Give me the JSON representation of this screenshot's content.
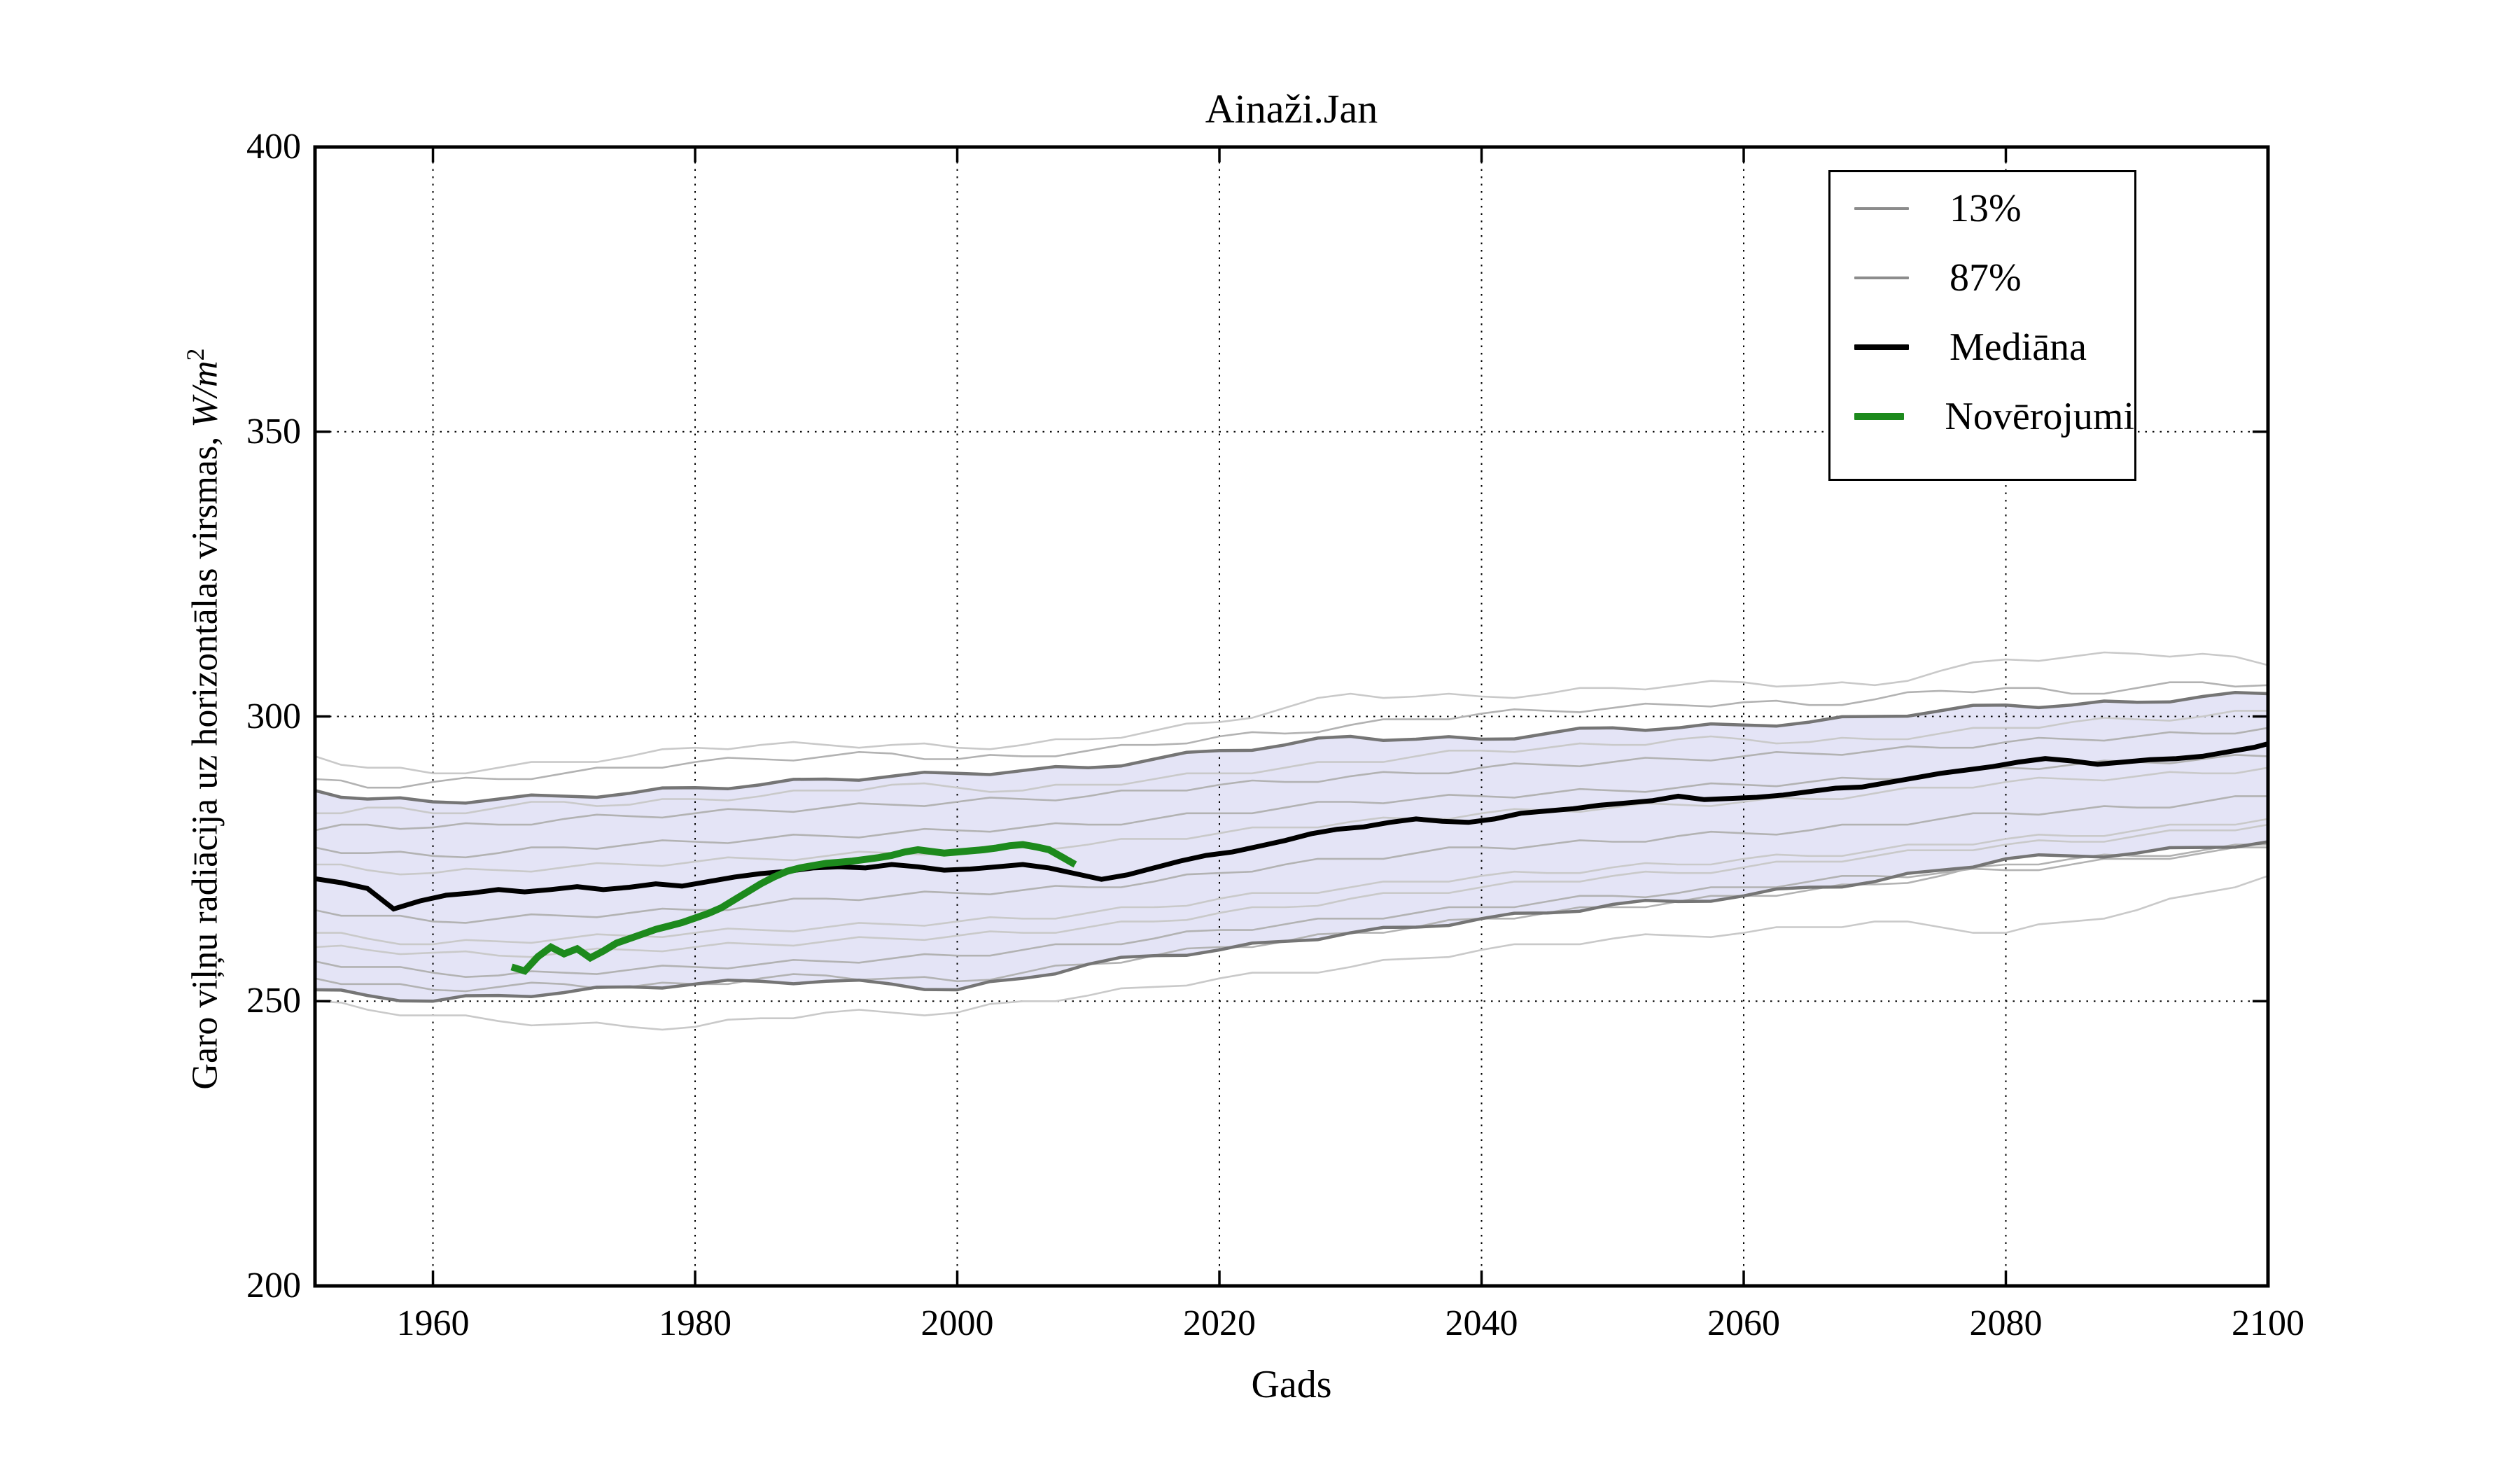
{
  "title": "Ainaži.Jan",
  "xlabel": "Gads",
  "ylabel": {
    "text": "Garo viļņu radiācija uz horizontālas virsmas, ",
    "math": "W/m",
    "sup": "2"
  },
  "legend": {
    "items": [
      {
        "label": "13%",
        "color": "#8c8c8c",
        "thickness": 4
      },
      {
        "label": "87%",
        "color": "#8c8c8c",
        "thickness": 4
      },
      {
        "label": "Mediāna",
        "color": "#000000",
        "thickness": 8
      },
      {
        "label": "Novērojumi",
        "color": "#1d8a1d",
        "thickness": 10
      }
    ]
  },
  "colors": {
    "band_fill": "#e4e4f6",
    "band_edge": "#757575",
    "run_light": "#c9c9c9",
    "run_mid": "#b2b2b2",
    "median": "#000000",
    "observations": "#1d8a1d",
    "grid": "#000000",
    "frame": "#000000"
  },
  "chart_data": {
    "type": "line",
    "title": "Ainaži.Jan",
    "xlabel": "Gads",
    "ylabel": "Garo viļņu radiācija uz horizontālas virsmas, W/m^2",
    "xlim": [
      1951,
      2100
    ],
    "ylim": [
      200,
      400
    ],
    "x_ticks": [
      1960,
      1980,
      2000,
      2020,
      2040,
      2060,
      2080,
      2100
    ],
    "y_ticks": [
      200,
      250,
      300,
      350,
      400
    ],
    "grid": true,
    "legend_position": "upper right",
    "x5": [
      1951,
      1955,
      1960,
      1965,
      1970,
      1975,
      1980,
      1985,
      1990,
      1995,
      2000,
      2005,
      2010,
      2015,
      2020,
      2025,
      2030,
      2035,
      2040,
      2045,
      2050,
      2055,
      2060,
      2065,
      2070,
      2075,
      2080,
      2085,
      2090,
      2095,
      2100
    ],
    "percentile_87": [
      287,
      285.5,
      285,
      285.5,
      286,
      286.5,
      287.5,
      288,
      289,
      289.5,
      290,
      290.5,
      291,
      292.5,
      294,
      295,
      296.5,
      296,
      296,
      297,
      298,
      298,
      298.5,
      299,
      300,
      301,
      302,
      302,
      302.5,
      303.5,
      304
    ],
    "percentile_13": [
      252,
      251,
      250,
      251,
      251.5,
      252.5,
      253,
      253.5,
      253.5,
      253,
      252,
      254,
      256.5,
      258,
      259,
      260.5,
      262,
      263,
      264.5,
      265.5,
      267,
      267.5,
      268.5,
      270,
      271,
      273,
      275,
      275.5,
      276,
      277,
      278
    ],
    "runs": [
      {
        "name": "run-1",
        "shade": "light",
        "y": [
          293,
          291,
          290,
          291,
          292,
          293,
          294.5,
          295,
          295,
          295,
          294.5,
          295,
          296,
          297.5,
          299,
          301.5,
          304,
          303.5,
          303.5,
          304,
          305,
          305.5,
          306,
          305.5,
          305.5,
          308,
          310,
          310.5,
          311,
          311,
          309
        ]
      },
      {
        "name": "run-2",
        "shade": "mid",
        "y": [
          289,
          287.5,
          288.5,
          289,
          290,
          291,
          292,
          292.5,
          293,
          293.5,
          292.5,
          293,
          294,
          295,
          296.5,
          297,
          298.5,
          299.5,
          300.5,
          301,
          301.5,
          302,
          302.5,
          302,
          303,
          304.5,
          305,
          304,
          305,
          306,
          305.5
        ]
      },
      {
        "name": "run-3",
        "shade": "light",
        "y": [
          283,
          284,
          283,
          284,
          285,
          284.5,
          285.5,
          286,
          287,
          288,
          287.5,
          287,
          288,
          289,
          290,
          291,
          292,
          293,
          294,
          294.5,
          295,
          296,
          296,
          295.5,
          296,
          297,
          298,
          299,
          299.5,
          300,
          301
        ]
      },
      {
        "name": "run-4",
        "shade": "mid",
        "y": [
          280,
          281,
          280.5,
          281,
          282,
          282.5,
          283,
          283.5,
          284,
          284.5,
          285,
          285.5,
          286,
          287,
          288,
          288.5,
          289.5,
          290,
          291,
          291.5,
          292,
          292.5,
          293,
          293.5,
          294,
          294.5,
          295.5,
          296,
          296.5,
          297,
          298
        ]
      },
      {
        "name": "run-5",
        "shade": "mid",
        "y": [
          277,
          276,
          275.5,
          276,
          277,
          277.5,
          278,
          278.5,
          279,
          279.5,
          280,
          280.5,
          281,
          282,
          283,
          284,
          285,
          285.5,
          286,
          286.5,
          287,
          287.5,
          288,
          288.5,
          289,
          290,
          291,
          291.5,
          292,
          292.5,
          293
        ]
      },
      {
        "name": "run-6",
        "shade": "light",
        "y": [
          274,
          273,
          272.5,
          273,
          273.5,
          274,
          274.5,
          275,
          275.5,
          276,
          276.5,
          277,
          277.5,
          278.5,
          279.5,
          280.5,
          281.5,
          282,
          283,
          283.5,
          284,
          284.5,
          285,
          285.5,
          286.5,
          287.5,
          288.5,
          289,
          289.5,
          290,
          291
        ]
      },
      {
        "name": "run-7",
        "shade": "mid",
        "y": [
          266,
          265,
          264,
          264.5,
          265,
          265.5,
          266,
          267,
          268,
          268.5,
          269,
          269.5,
          270,
          271,
          272.5,
          274,
          275,
          276,
          277,
          277.5,
          278,
          279,
          279.5,
          280,
          281,
          282,
          283,
          283.5,
          284,
          285,
          286
        ]
      },
      {
        "name": "run-8",
        "shade": "light",
        "y": [
          262,
          261,
          260,
          260.5,
          261,
          261.5,
          262,
          262.5,
          263,
          263.5,
          264,
          264.5,
          265.5,
          266.5,
          268,
          269,
          270,
          271,
          272,
          272.5,
          273.5,
          274,
          275,
          275.5,
          276.5,
          277.5,
          278.5,
          279,
          280,
          281,
          282
        ]
      },
      {
        "name": "run-9",
        "shade": "mid",
        "y": [
          257,
          256,
          255,
          254.5,
          255,
          255.5,
          256,
          256.5,
          257,
          257.5,
          258,
          259,
          260,
          261,
          262.5,
          263.5,
          264.5,
          265.5,
          266.5,
          267.5,
          268.5,
          269,
          270,
          271,
          272,
          272.5,
          273,
          274,
          275,
          276,
          277
        ]
      },
      {
        "name": "run-10",
        "shade": "light",
        "y": [
          250,
          248.5,
          247.5,
          246.5,
          246,
          245.5,
          245.5,
          247,
          248,
          248,
          248,
          250,
          251,
          252.5,
          254,
          255,
          256,
          257.5,
          259,
          260,
          261,
          261.5,
          262,
          263,
          264,
          263,
          262,
          264,
          266,
          269,
          272
        ]
      },
      {
        "name": "run-11",
        "shade": "mid",
        "y": [
          254,
          253,
          252,
          252.5,
          253,
          252.5,
          253,
          254,
          254.5,
          254,
          253.5,
          255,
          256.5,
          258,
          259.5,
          260.5,
          262,
          263,
          264.5,
          265.5,
          266.5,
          267.5,
          268.5,
          269.5,
          270.5,
          272,
          274,
          275,
          275.5,
          276.5,
          277.5
        ]
      },
      {
        "name": "run-12",
        "shade": "light",
        "y": [
          259.5,
          259,
          258.5,
          258,
          258.5,
          259,
          259.5,
          260,
          260.5,
          261,
          261.5,
          262,
          263,
          264,
          265.5,
          266.5,
          268,
          269,
          270,
          271,
          272,
          272.5,
          273.5,
          274.5,
          275.5,
          276.5,
          277.5,
          278,
          279,
          280,
          281
        ]
      }
    ],
    "median": {
      "x": [
        1951,
        1953,
        1955,
        1957,
        1959,
        1961,
        1963,
        1965,
        1967,
        1969,
        1971,
        1973,
        1975,
        1977,
        1979,
        1981,
        1983,
        1985,
        1987,
        1989,
        1991,
        1993,
        1995,
        1997,
        1999,
        2001,
        2003,
        2005,
        2007,
        2009,
        2011,
        2013,
        2015,
        2017,
        2019,
        2021,
        2023,
        2025,
        2027,
        2029,
        2031,
        2033,
        2035,
        2037,
        2039,
        2041,
        2043,
        2045,
        2047,
        2049,
        2051,
        2053,
        2055,
        2057,
        2059,
        2061,
        2063,
        2065,
        2067,
        2069,
        2071,
        2073,
        2075,
        2077,
        2079,
        2081,
        2083,
        2085,
        2087,
        2089,
        2091,
        2093,
        2095,
        2097,
        2099,
        2100
      ],
      "y": [
        271.5,
        270.8,
        269.8,
        266.2,
        267.6,
        268.6,
        269.0,
        269.6,
        269.2,
        269.6,
        270.1,
        269.6,
        270.0,
        270.6,
        270.2,
        271.0,
        271.8,
        272.4,
        272.8,
        273.4,
        273.6,
        273.4,
        274.0,
        273.6,
        273.0,
        273.2,
        273.6,
        274.0,
        273.4,
        272.4,
        271.4,
        272.2,
        273.4,
        274.6,
        275.6,
        276.2,
        277.2,
        278.2,
        279.4,
        280.2,
        280.6,
        281.4,
        282.0,
        281.6,
        281.4,
        282.0,
        283.0,
        283.4,
        283.8,
        284.4,
        284.8,
        285.2,
        286.0,
        285.4,
        285.6,
        285.8,
        286.2,
        286.8,
        287.4,
        287.6,
        288.4,
        289.2,
        290.0,
        290.6,
        291.2,
        292.0,
        292.6,
        292.2,
        291.6,
        292.0,
        292.4,
        292.6,
        293.0,
        293.8,
        294.6,
        295.2
      ]
    },
    "observations": {
      "x": [
        1966,
        1967,
        1968,
        1969,
        1970,
        1971,
        1972,
        1973,
        1974,
        1975,
        1976,
        1977,
        1978,
        1979,
        1980,
        1981,
        1982,
        1983,
        1984,
        1985,
        1986,
        1987,
        1988,
        1989,
        1990,
        1991,
        1992,
        1993,
        1994,
        1995,
        1996,
        1997,
        1998,
        1999,
        2000,
        2001,
        2002,
        2003,
        2004,
        2005,
        2006,
        2007,
        2008,
        2009
      ],
      "y": [
        256.0,
        255.3,
        257.8,
        259.5,
        258.3,
        259.2,
        257.6,
        258.8,
        260.2,
        261.0,
        261.8,
        262.6,
        263.2,
        263.8,
        264.6,
        265.4,
        266.4,
        267.8,
        269.2,
        270.6,
        271.8,
        272.8,
        273.4,
        273.8,
        274.2,
        274.4,
        274.6,
        274.9,
        275.2,
        275.6,
        276.2,
        276.6,
        276.3,
        276.0,
        276.2,
        276.4,
        276.6,
        276.9,
        277.3,
        277.5,
        277.1,
        276.6,
        275.3,
        274.0
      ]
    }
  }
}
